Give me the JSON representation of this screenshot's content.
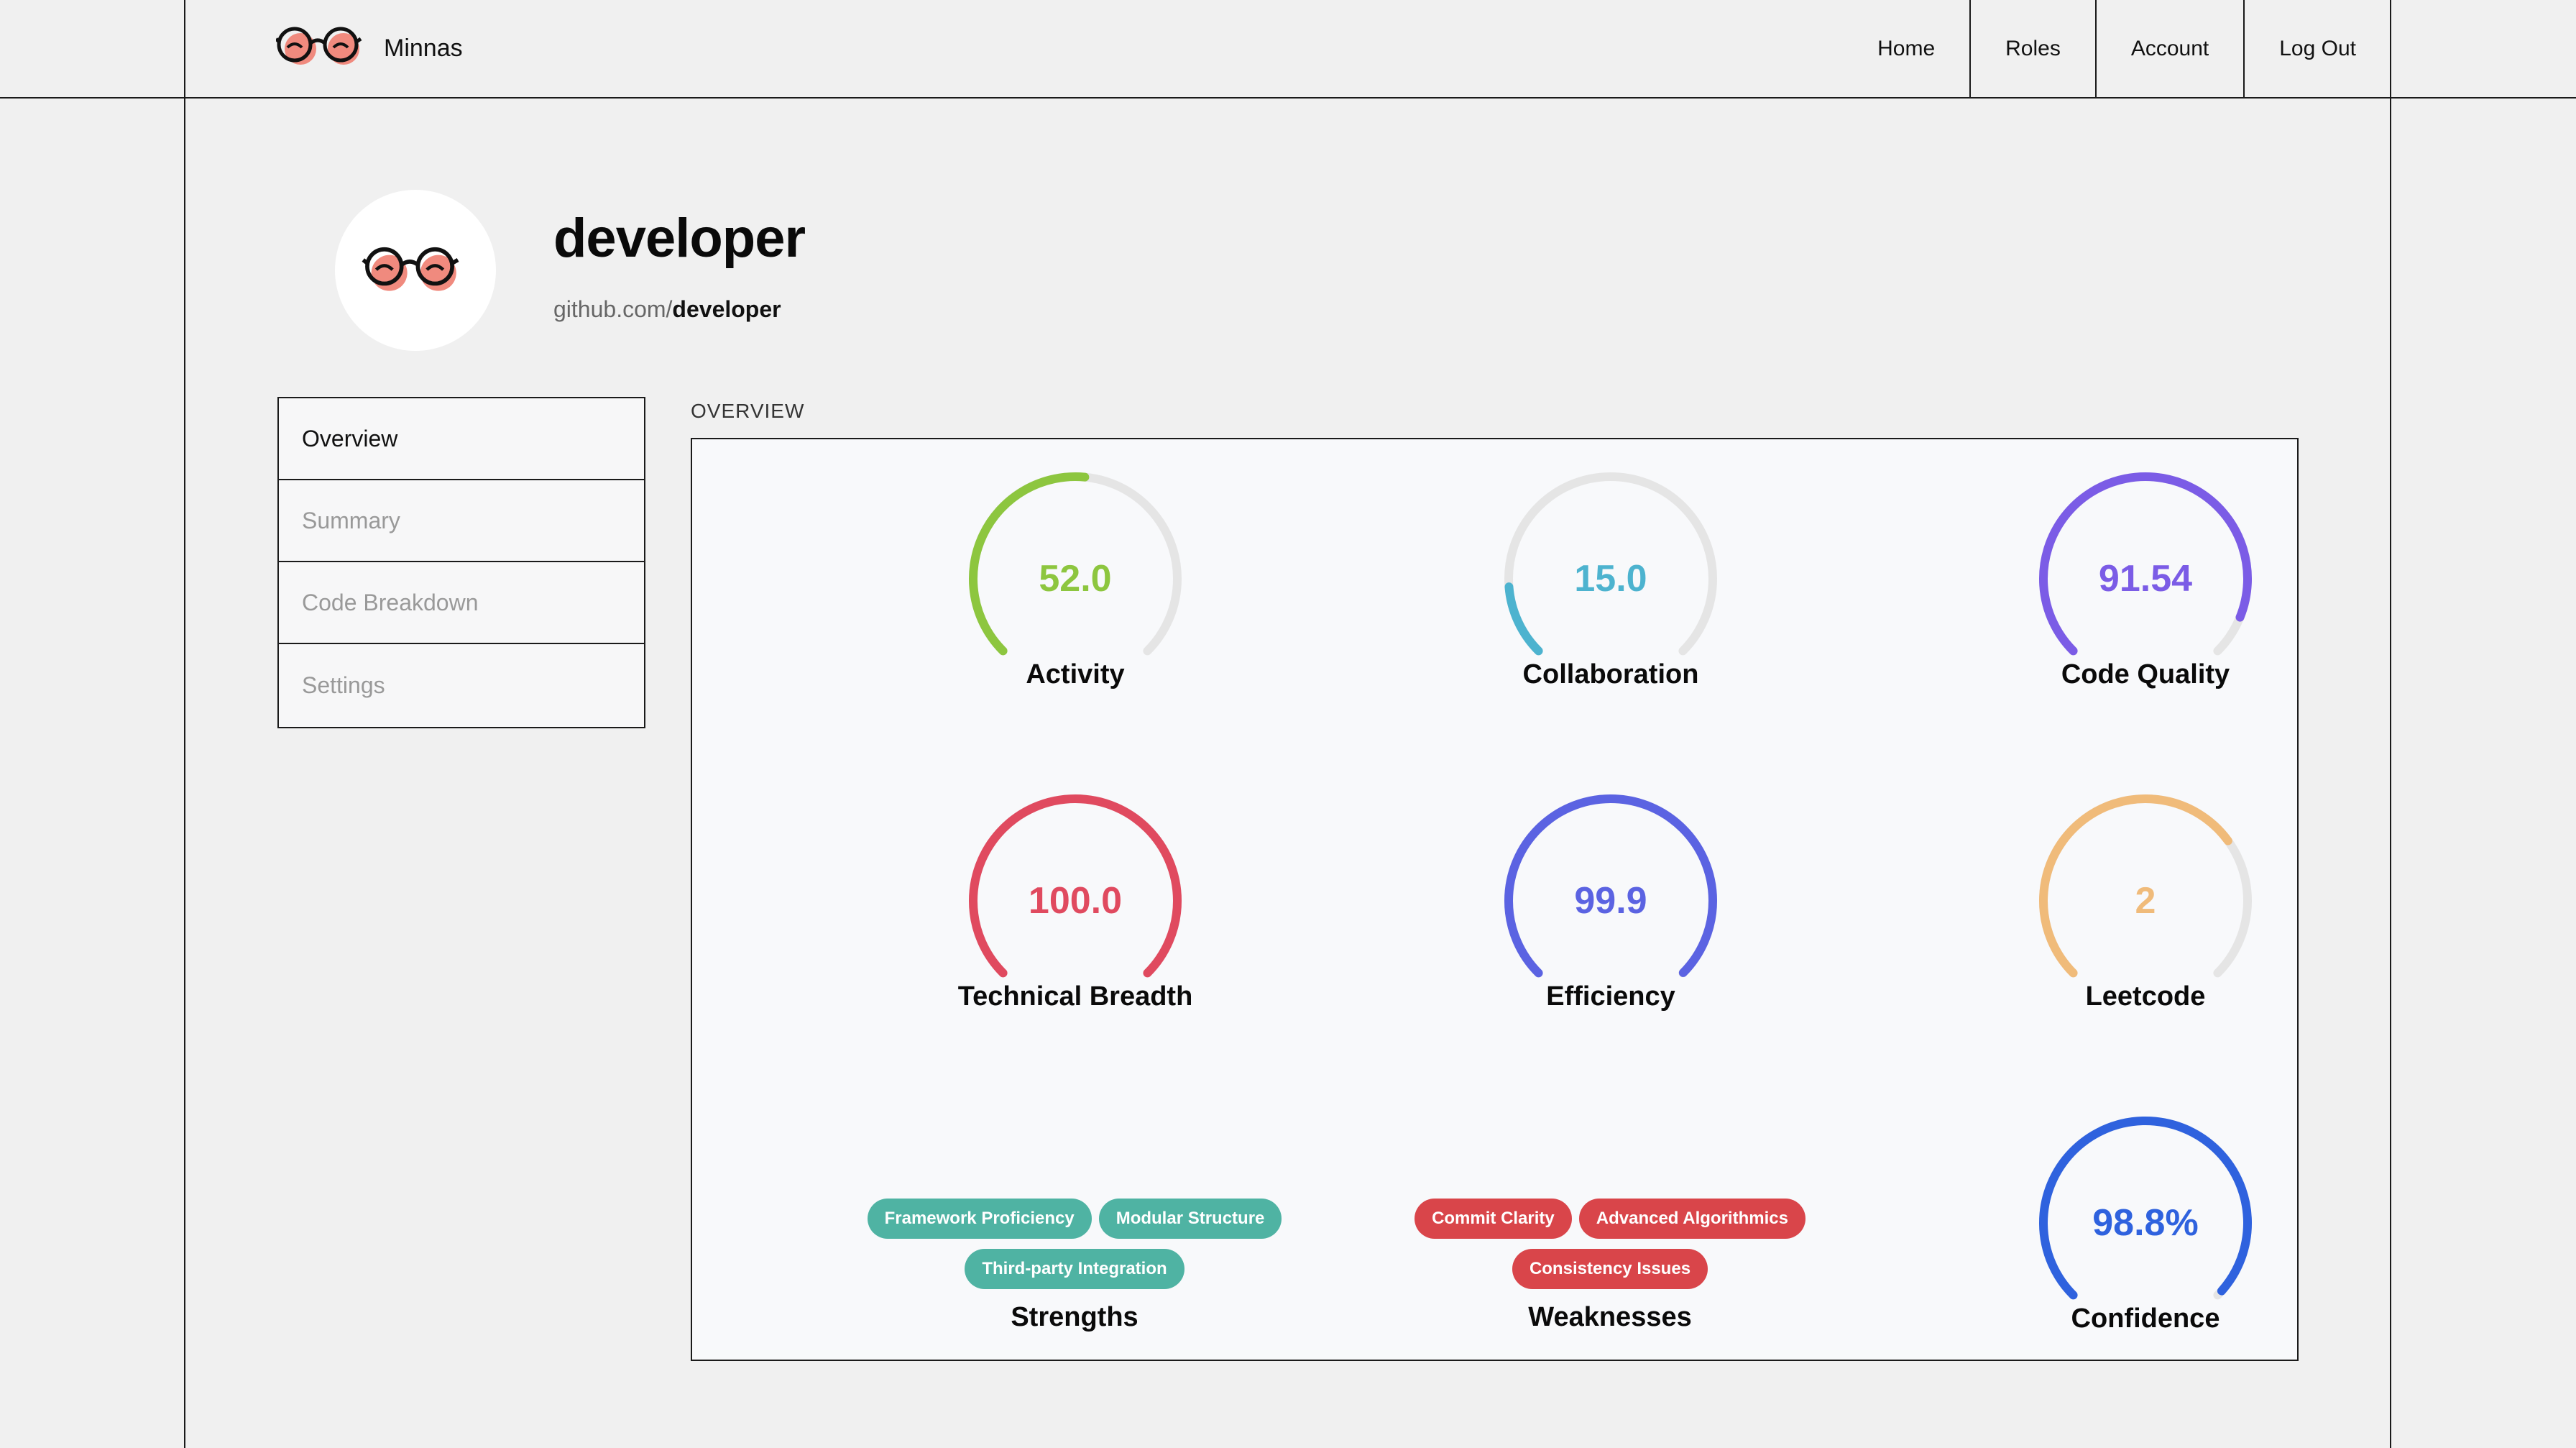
{
  "brand": {
    "name": "Minnas",
    "logo_icon": "glasses-icon"
  },
  "nav": {
    "items": [
      "Home",
      "Roles",
      "Account",
      "Log Out"
    ]
  },
  "profile": {
    "name": "developer",
    "url_prefix": "github.com/",
    "username": "developer"
  },
  "sidebar": {
    "items": [
      {
        "label": "Overview",
        "active": true
      },
      {
        "label": "Summary",
        "active": false
      },
      {
        "label": "Code Breakdown",
        "active": false
      },
      {
        "label": "Settings",
        "active": false
      }
    ]
  },
  "overview": {
    "label": "OVERVIEW",
    "gauges": [
      {
        "label": "Activity",
        "value": "52.0",
        "fraction": 0.52,
        "color": "#8dc63f"
      },
      {
        "label": "Collaboration",
        "value": "15.0",
        "fraction": 0.15,
        "color": "#4db3cf"
      },
      {
        "label": "Code Quality",
        "value": "91.54",
        "fraction": 0.9154,
        "color": "#7b5ce6"
      },
      {
        "label": "Technical Breadth",
        "value": "100.0",
        "fraction": 1.0,
        "color": "#e04a5f"
      },
      {
        "label": "Efficiency",
        "value": "99.9",
        "fraction": 0.999,
        "color": "#5b63e2"
      },
      {
        "label": "Leetcode",
        "value": "2",
        "fraction": 0.7,
        "color": "#f0bb7a"
      },
      {
        "label": "Confidence",
        "value": "98.8%",
        "fraction": 0.988,
        "color": "#2f62de"
      }
    ],
    "strengths": {
      "label": "Strengths",
      "color": "#4fb3a3",
      "tags": [
        "Framework Proficiency",
        "Modular Structure",
        "Third-party Integration"
      ]
    },
    "weaknesses": {
      "label": "Weaknesses",
      "color": "#d9454a",
      "tags": [
        "Commit Clarity",
        "Advanced Algorithmics",
        "Consistency Issues"
      ]
    }
  },
  "colors": {
    "track": "#e5e5e5",
    "border": "#1a1a1a",
    "background": "#f0f0f0"
  }
}
